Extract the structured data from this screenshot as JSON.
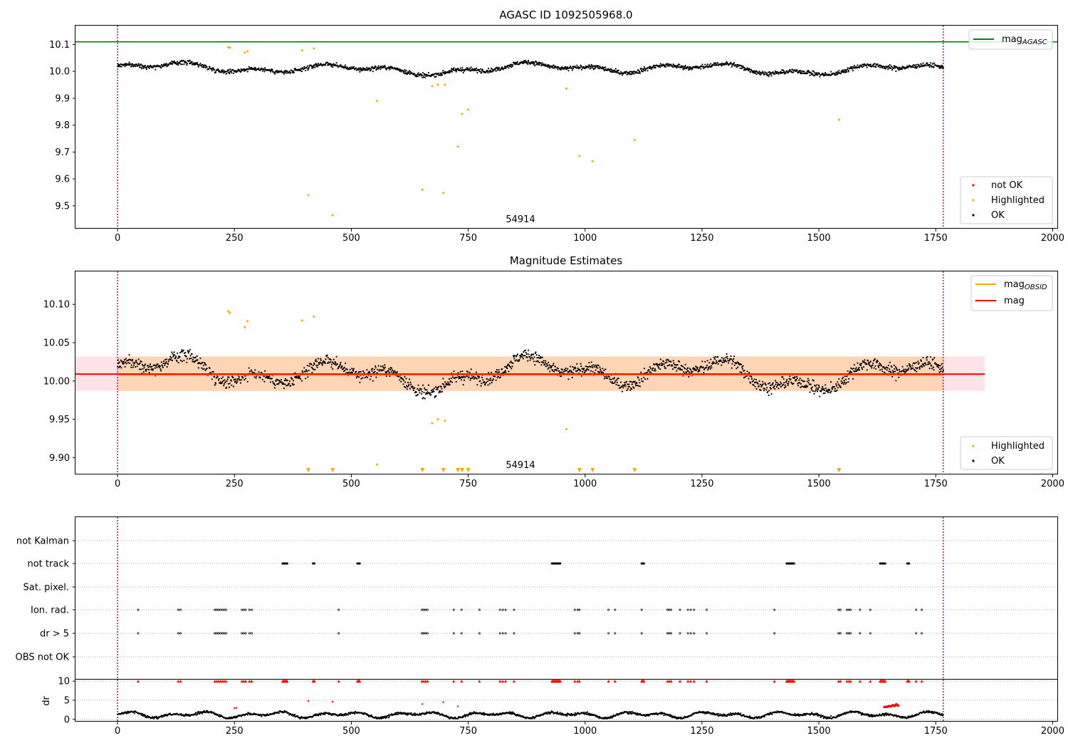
{
  "chart_data": [
    {
      "type": "scatter",
      "title": "AGASC ID 1092505968.0",
      "xlim": [
        -90,
        2010
      ],
      "ylim": [
        9.415,
        10.17
      ],
      "x_ticks": [
        "0",
        "250",
        "500",
        "750",
        "1000",
        "1250",
        "1500",
        "1750",
        "2000"
      ],
      "x_tick_values": [
        0,
        250,
        500,
        750,
        1000,
        1250,
        1500,
        1750,
        2000
      ],
      "y_ticks": [
        "9.5",
        "9.6",
        "9.7",
        "9.8",
        "9.9",
        "10.0",
        "10.1"
      ],
      "y_tick_values": [
        9.5,
        9.6,
        9.7,
        9.8,
        9.9,
        10.0,
        10.1
      ],
      "obsid_label": "54914",
      "obsid_label_x": 880,
      "obsid_bounds": [
        0,
        1766
      ],
      "reference_line": {
        "name": "mag",
        "subscript": "AGASC",
        "y": 10.11,
        "color": "#008000"
      },
      "legend_top": [
        {
          "name": "mag",
          "subscript": "AGASC",
          "color": "#008000",
          "kind": "line"
        }
      ],
      "legend_bottom": [
        {
          "name": "not OK",
          "color": "#ff0000",
          "kind": "dot"
        },
        {
          "name": "Highlighted",
          "color": "#ffa500",
          "kind": "dot"
        },
        {
          "name": "OK",
          "color": "#000000",
          "kind": "dot"
        }
      ],
      "ok_series": {
        "name": "OK",
        "n_points": 1766,
        "x_range": [
          0,
          1766
        ],
        "center": 10.01,
        "color": "#000000"
      },
      "highlighted": [
        [
          237,
          10.09
        ],
        [
          240,
          10.088
        ],
        [
          272,
          10.07
        ],
        [
          278,
          10.075
        ],
        [
          395,
          10.078
        ],
        [
          408,
          9.54
        ],
        [
          420,
          10.085
        ],
        [
          460,
          9.465
        ],
        [
          555,
          9.89
        ],
        [
          652,
          9.56
        ],
        [
          673,
          9.945
        ],
        [
          685,
          9.95
        ],
        [
          697,
          9.548
        ],
        [
          700,
          9.95
        ],
        [
          728,
          9.72
        ],
        [
          737,
          9.842
        ],
        [
          750,
          9.858
        ],
        [
          960,
          9.936
        ],
        [
          988,
          9.686
        ],
        [
          1016,
          9.666
        ],
        [
          1106,
          9.745
        ],
        [
          1543,
          9.82
        ]
      ]
    },
    {
      "type": "scatter",
      "title": "Magnitude Estimates",
      "xlim": [
        -90,
        2010
      ],
      "ylim": [
        9.878,
        10.143
      ],
      "x_ticks": [
        "0",
        "250",
        "500",
        "750",
        "1000",
        "1250",
        "1500",
        "1750",
        "2000"
      ],
      "x_tick_values": [
        0,
        250,
        500,
        750,
        1000,
        1250,
        1500,
        1750,
        2000
      ],
      "y_ticks": [
        "9.90",
        "9.95",
        "10.00",
        "10.05",
        "10.10"
      ],
      "y_tick_values": [
        9.9,
        9.95,
        10.0,
        10.05,
        10.1
      ],
      "obsid_label": "54914",
      "obsid_label_x": 880,
      "obsid_bounds": [
        0,
        1766
      ],
      "mag_line": {
        "name": "mag",
        "y": 10.009,
        "color": "#ff0000",
        "x_range": [
          -90,
          1855
        ]
      },
      "mag_obsid_line": {
        "name": "mag",
        "subscript": "OBSID",
        "y": 10.008,
        "color": "#ffa500",
        "x_range": [
          0,
          1766
        ]
      },
      "band_pink": {
        "y_range": [
          9.987,
          10.032
        ],
        "x_range": [
          -90,
          1855
        ],
        "color": "#ffc0cb"
      },
      "band_orange": {
        "y_range": [
          9.987,
          10.032
        ],
        "x_range": [
          0,
          1766
        ],
        "color": "#ffa500"
      },
      "legend_top": [
        {
          "name": "mag",
          "subscript": "OBSID",
          "color": "#ffa500",
          "kind": "line"
        },
        {
          "name": "mag",
          "subscript": "",
          "color": "#ff0000",
          "kind": "line"
        }
      ],
      "legend_bottom": [
        {
          "name": "Highlighted",
          "color": "#ffa500",
          "kind": "dot"
        },
        {
          "name": "OK",
          "color": "#000000",
          "kind": "dot"
        }
      ],
      "ok_series": {
        "name": "OK",
        "n_points": 1766,
        "x_range": [
          0,
          1766
        ],
        "center": 10.01,
        "color": "#000000"
      },
      "highlighted": [
        [
          237,
          10.091
        ],
        [
          240,
          10.089
        ],
        [
          272,
          10.07
        ],
        [
          278,
          10.078
        ],
        [
          395,
          10.079
        ],
        [
          420,
          10.084
        ],
        [
          555,
          9.891
        ],
        [
          673,
          9.945
        ],
        [
          685,
          9.95
        ],
        [
          700,
          9.948
        ],
        [
          960,
          9.937
        ]
      ],
      "below_range_markers": [
        408,
        460,
        652,
        697,
        728,
        737,
        750,
        988,
        1016,
        1106,
        1543
      ]
    },
    {
      "type": "scatter",
      "title": "",
      "xlim": [
        -90,
        2010
      ],
      "x_ticks": [
        "0",
        "250",
        "500",
        "750",
        "1000",
        "1250",
        "1500",
        "1750",
        "2000"
      ],
      "x_tick_values": [
        0,
        250,
        500,
        750,
        1000,
        1250,
        1500,
        1750,
        2000
      ],
      "flag_rows": [
        "not Kalman",
        "not track",
        "Sat. pixel.",
        "Ion. rad.",
        "dr > 5",
        "OBS not OK"
      ],
      "flags": {
        "not track": [
          353,
          354,
          355,
          356,
          357,
          358,
          359,
          360,
          361,
          362,
          363,
          418,
          419,
          420,
          421,
          513,
          514,
          515,
          516,
          517,
          518,
          929,
          930,
          931,
          932,
          933,
          934,
          935,
          936,
          937,
          938,
          939,
          940,
          941,
          942,
          943,
          944,
          945,
          946,
          947,
          1121,
          1122,
          1123,
          1124,
          1125,
          1126,
          1431,
          1432,
          1433,
          1434,
          1435,
          1436,
          1437,
          1438,
          1439,
          1440,
          1441,
          1442,
          1443,
          1444,
          1445,
          1446,
          1447,
          1631,
          1632,
          1633,
          1634,
          1635,
          1636,
          1637,
          1638,
          1639,
          1640,
          1641,
          1642,
          1689,
          1690,
          1691,
          1692,
          1693
        ],
        "Ion. rad.": [
          44,
          130,
          135,
          208,
          212,
          216,
          220,
          224,
          228,
          232,
          266,
          270,
          274,
          282,
          287,
          473,
          651,
          655,
          659,
          663,
          719,
          736,
          774,
          818,
          824,
          830,
          848,
          978,
          984,
          988,
          1050,
          1064,
          1121,
          1176,
          1180,
          1184,
          1203,
          1220,
          1226,
          1233,
          1260,
          1405,
          1542,
          1546,
          1560,
          1564,
          1568,
          1588,
          1610,
          1708,
          1720
        ],
        "dr > 5": [
          44,
          130,
          135,
          208,
          212,
          216,
          220,
          224,
          228,
          232,
          266,
          270,
          274,
          282,
          287,
          473,
          651,
          655,
          659,
          663,
          719,
          736,
          774,
          818,
          824,
          830,
          848,
          978,
          984,
          988,
          1050,
          1064,
          1121,
          1176,
          1180,
          1184,
          1203,
          1220,
          1226,
          1233,
          1260,
          1405,
          1542,
          1546,
          1560,
          1564,
          1568,
          1588,
          1610,
          1708,
          1720
        ]
      },
      "dr_panel": {
        "ylabel": "dr",
        "y_ticks": [
          "0",
          "5",
          "10"
        ],
        "y_tick_values": [
          0,
          5,
          10
        ],
        "ylim": [
          -0.6,
          10.4
        ],
        "clipped_value": 10,
        "clipped_x": [
          44,
          130,
          135,
          208,
          212,
          216,
          220,
          224,
          228,
          232,
          266,
          270,
          274,
          282,
          287,
          353,
          354,
          355,
          356,
          357,
          358,
          359,
          360,
          361,
          362,
          363,
          418,
          419,
          420,
          421,
          473,
          513,
          514,
          515,
          516,
          517,
          518,
          651,
          655,
          659,
          663,
          719,
          736,
          774,
          818,
          824,
          830,
          848,
          929,
          930,
          931,
          932,
          933,
          934,
          935,
          936,
          937,
          938,
          939,
          940,
          941,
          942,
          943,
          944,
          945,
          946,
          947,
          978,
          984,
          988,
          1050,
          1064,
          1121,
          1122,
          1123,
          1124,
          1125,
          1126,
          1176,
          1180,
          1184,
          1203,
          1220,
          1226,
          1233,
          1260,
          1405,
          1431,
          1432,
          1433,
          1434,
          1435,
          1436,
          1437,
          1438,
          1439,
          1440,
          1441,
          1442,
          1443,
          1444,
          1445,
          1446,
          1447,
          1542,
          1546,
          1560,
          1564,
          1568,
          1588,
          1610,
          1631,
          1632,
          1633,
          1634,
          1635,
          1636,
          1637,
          1638,
          1639,
          1640,
          1641,
          1642,
          1689,
          1690,
          1691,
          1692,
          1693,
          1708,
          1720
        ],
        "red_points": [
          [
            250,
            2.9
          ],
          [
            254,
            3.0
          ],
          [
            408,
            4.8
          ],
          [
            460,
            4.6
          ],
          [
            652,
            4.0
          ],
          [
            697,
            4.5
          ],
          [
            728,
            3.4
          ]
        ],
        "red_cluster": {
          "x_range": [
            1640,
            1670
          ],
          "y_range": [
            3.2,
            4.1
          ]
        },
        "ok_series": {
          "name": "OK",
          "n_points": 1766,
          "x_range": [
            0,
            1766
          ],
          "typical": 1.2,
          "color": "#000000"
        }
      }
    }
  ]
}
